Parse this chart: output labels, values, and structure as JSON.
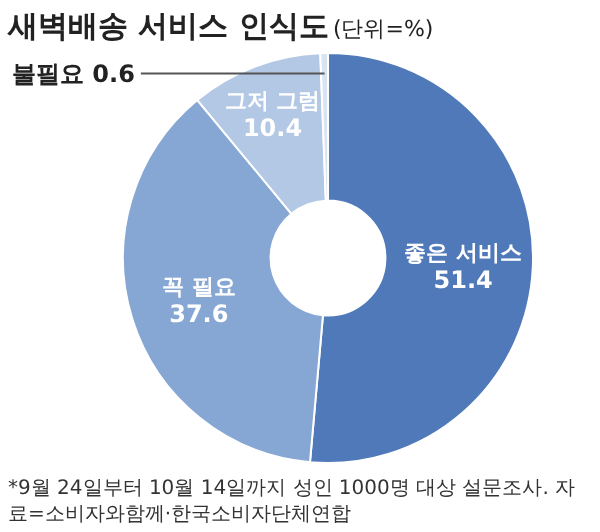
{
  "chart_data": {
    "type": "donut",
    "title": "새벽배송 서비스 인식도",
    "subtitle": "(단위=%)",
    "categories": [
      "좋은 서비스",
      "꼭 필요",
      "그저 그럼",
      "불필요"
    ],
    "values": [
      51.4,
      37.6,
      10.4,
      0.6
    ],
    "colors": [
      "#4f79b9",
      "#86a7d3",
      "#b3c8e4",
      "#d9e4f2"
    ],
    "data_labels": true,
    "legend": false,
    "annotations": [
      "*9월 24일부터 10월 14일까지 성인 1000명 대상 설문조사. 자료=소비자와함께·한국소비자단체연합"
    ]
  }
}
